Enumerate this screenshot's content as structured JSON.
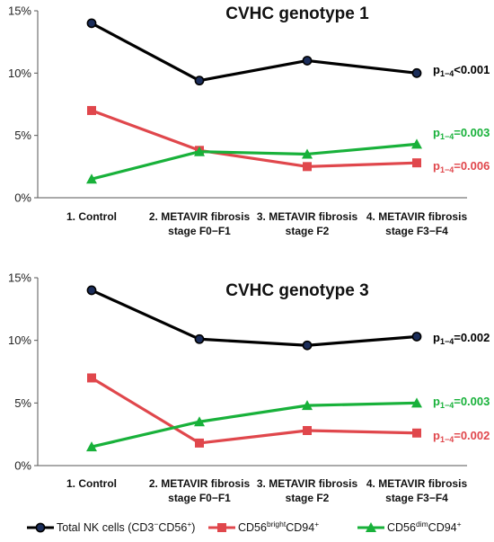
{
  "colors": {
    "total": "#000000",
    "bright": "#e0474c",
    "dim": "#18b13a"
  },
  "legend": [
    {
      "key": "total",
      "marker": "circle",
      "base": "Total NK cells (CD3",
      "sup1": "−",
      "mid": "CD56",
      "sup2": "+",
      "tail": ")"
    },
    {
      "key": "bright",
      "marker": "square",
      "base": "CD56",
      "sup1": "bright",
      "mid": "CD94",
      "sup2": "+",
      "tail": ""
    },
    {
      "key": "dim",
      "marker": "triangle",
      "base": "CD56",
      "sup1": "dim",
      "mid": "CD94",
      "sup2": "+",
      "tail": ""
    }
  ],
  "chart_data": [
    {
      "type": "line",
      "title": "CVHC genotype 1",
      "categories": [
        [
          "1. Control"
        ],
        [
          "2. METAVIR fibrosis",
          "stage F0−F1"
        ],
        [
          "3. METAVIR fibrosis",
          "stage F2"
        ],
        [
          "4. METAVIR fibrosis",
          "stage F3−F4"
        ]
      ],
      "y_ticks": [
        "0%",
        "5%",
        "10%",
        "15%"
      ],
      "ylim": [
        0,
        15
      ],
      "grid": false,
      "series": [
        {
          "key": "total",
          "values": [
            14.0,
            9.4,
            11.0,
            10.0
          ],
          "p_prefix": "p",
          "p_sub": "1−4",
          "p_rest": "<0.001"
        },
        {
          "key": "bright",
          "values": [
            7.0,
            3.8,
            2.5,
            2.8
          ],
          "p_prefix": "p",
          "p_sub": "1−4",
          "p_rest": "=0.006"
        },
        {
          "key": "dim",
          "values": [
            1.5,
            3.7,
            3.5,
            4.3
          ],
          "p_prefix": "p",
          "p_sub": "1−4",
          "p_rest": "=0.003"
        }
      ]
    },
    {
      "type": "line",
      "title": "CVHC genotype 3",
      "categories": [
        [
          "1. Control"
        ],
        [
          "2. METAVIR fibrosis",
          "stage F0−F1"
        ],
        [
          "3. METAVIR fibrosis",
          "stage F2"
        ],
        [
          "4. METAVIR fibrosis",
          "stage F3−F4"
        ]
      ],
      "y_ticks": [
        "0%",
        "5%",
        "10%",
        "15%"
      ],
      "ylim": [
        0,
        15
      ],
      "grid": false,
      "series": [
        {
          "key": "total",
          "values": [
            14.0,
            10.1,
            9.6,
            10.3
          ],
          "p_prefix": "p",
          "p_sub": "1−4",
          "p_rest": "=0.002"
        },
        {
          "key": "bright",
          "values": [
            7.0,
            1.8,
            2.8,
            2.6
          ],
          "p_prefix": "p",
          "p_sub": "1−4",
          "p_rest": "=0.002"
        },
        {
          "key": "dim",
          "values": [
            1.5,
            3.5,
            4.8,
            5.0
          ],
          "p_prefix": "p",
          "p_sub": "1−4",
          "p_rest": "=0.003"
        }
      ]
    }
  ]
}
